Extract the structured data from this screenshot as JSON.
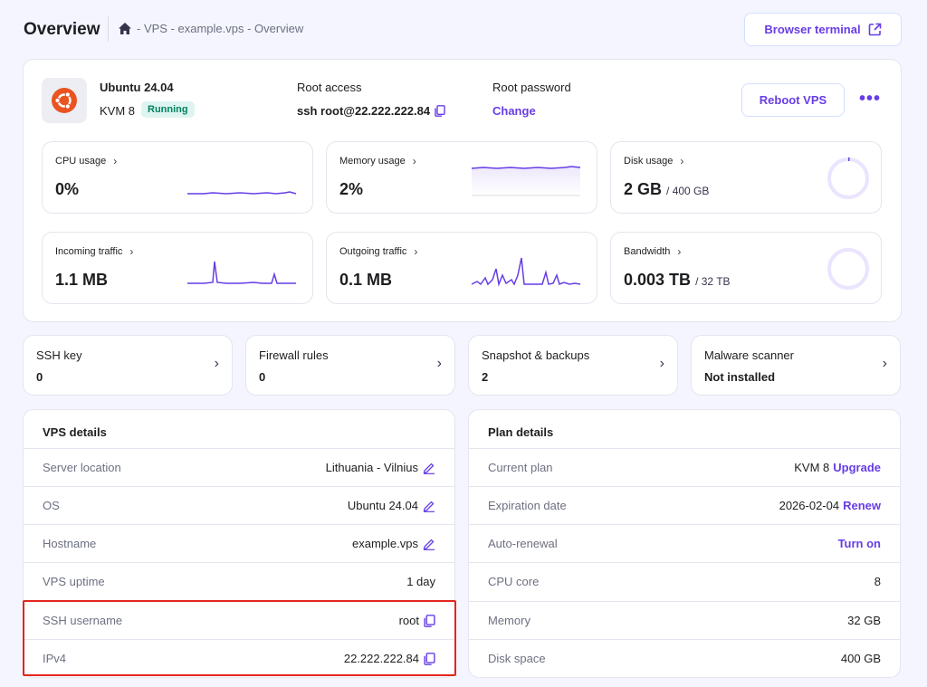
{
  "header": {
    "title": "Overview",
    "breadcrumb": "- VPS - example.vps - Overview",
    "browser_terminal_label": "Browser terminal"
  },
  "server": {
    "os_name": "Ubuntu 24.04",
    "plan": "KVM 8",
    "status": "Running",
    "root_access_label": "Root access",
    "root_access_value": "ssh root@22.222.222.84",
    "root_password_label": "Root password",
    "root_password_action": "Change",
    "reboot_label": "Reboot VPS",
    "more_label": "•••"
  },
  "metrics": {
    "cpu": {
      "title": "CPU usage",
      "value": "0%"
    },
    "memory": {
      "title": "Memory usage",
      "value": "2%"
    },
    "disk": {
      "title": "Disk usage",
      "value": "2 GB",
      "total": "/ 400 GB",
      "fraction": 0.005
    },
    "incoming": {
      "title": "Incoming traffic",
      "value": "1.1 MB"
    },
    "outgoing": {
      "title": "Outgoing traffic",
      "value": "0.1 MB"
    },
    "bandwidth": {
      "title": "Bandwidth",
      "value": "0.003 TB",
      "total": "/ 32 TB",
      "fraction": 0.0001
    }
  },
  "quick_cards": [
    {
      "title": "SSH key",
      "value": "0"
    },
    {
      "title": "Firewall rules",
      "value": "0"
    },
    {
      "title": "Snapshot & backups",
      "value": "2"
    },
    {
      "title": "Malware scanner",
      "value": "Not installed"
    }
  ],
  "vps_details": {
    "title": "VPS details",
    "rows": [
      {
        "label": "Server location",
        "value": "Lithuania - Vilnius"
      },
      {
        "label": "OS",
        "value": "Ubuntu 24.04"
      },
      {
        "label": "Hostname",
        "value": "example.vps"
      },
      {
        "label": "VPS uptime",
        "value": "1 day"
      },
      {
        "label": "SSH username",
        "value": "root"
      },
      {
        "label": "IPv4",
        "value": "22.222.222.84"
      }
    ]
  },
  "plan_details": {
    "title": "Plan details",
    "rows": [
      {
        "label": "Current plan",
        "value": "KVM 8",
        "action": "Upgrade"
      },
      {
        "label": "Expiration date",
        "value": "2026-02-04",
        "action": "Renew"
      },
      {
        "label": "Auto-renewal",
        "value": "",
        "action": "Turn on"
      },
      {
        "label": "CPU core",
        "value": "8"
      },
      {
        "label": "Memory",
        "value": "32 GB"
      },
      {
        "label": "Disk space",
        "value": "400 GB"
      }
    ]
  },
  "colors": {
    "accent": "#673de6",
    "running_bg": "#def4f0",
    "running_fg": "#008361",
    "highlight": "#e3251c",
    "ubuntu": "#e95420"
  }
}
